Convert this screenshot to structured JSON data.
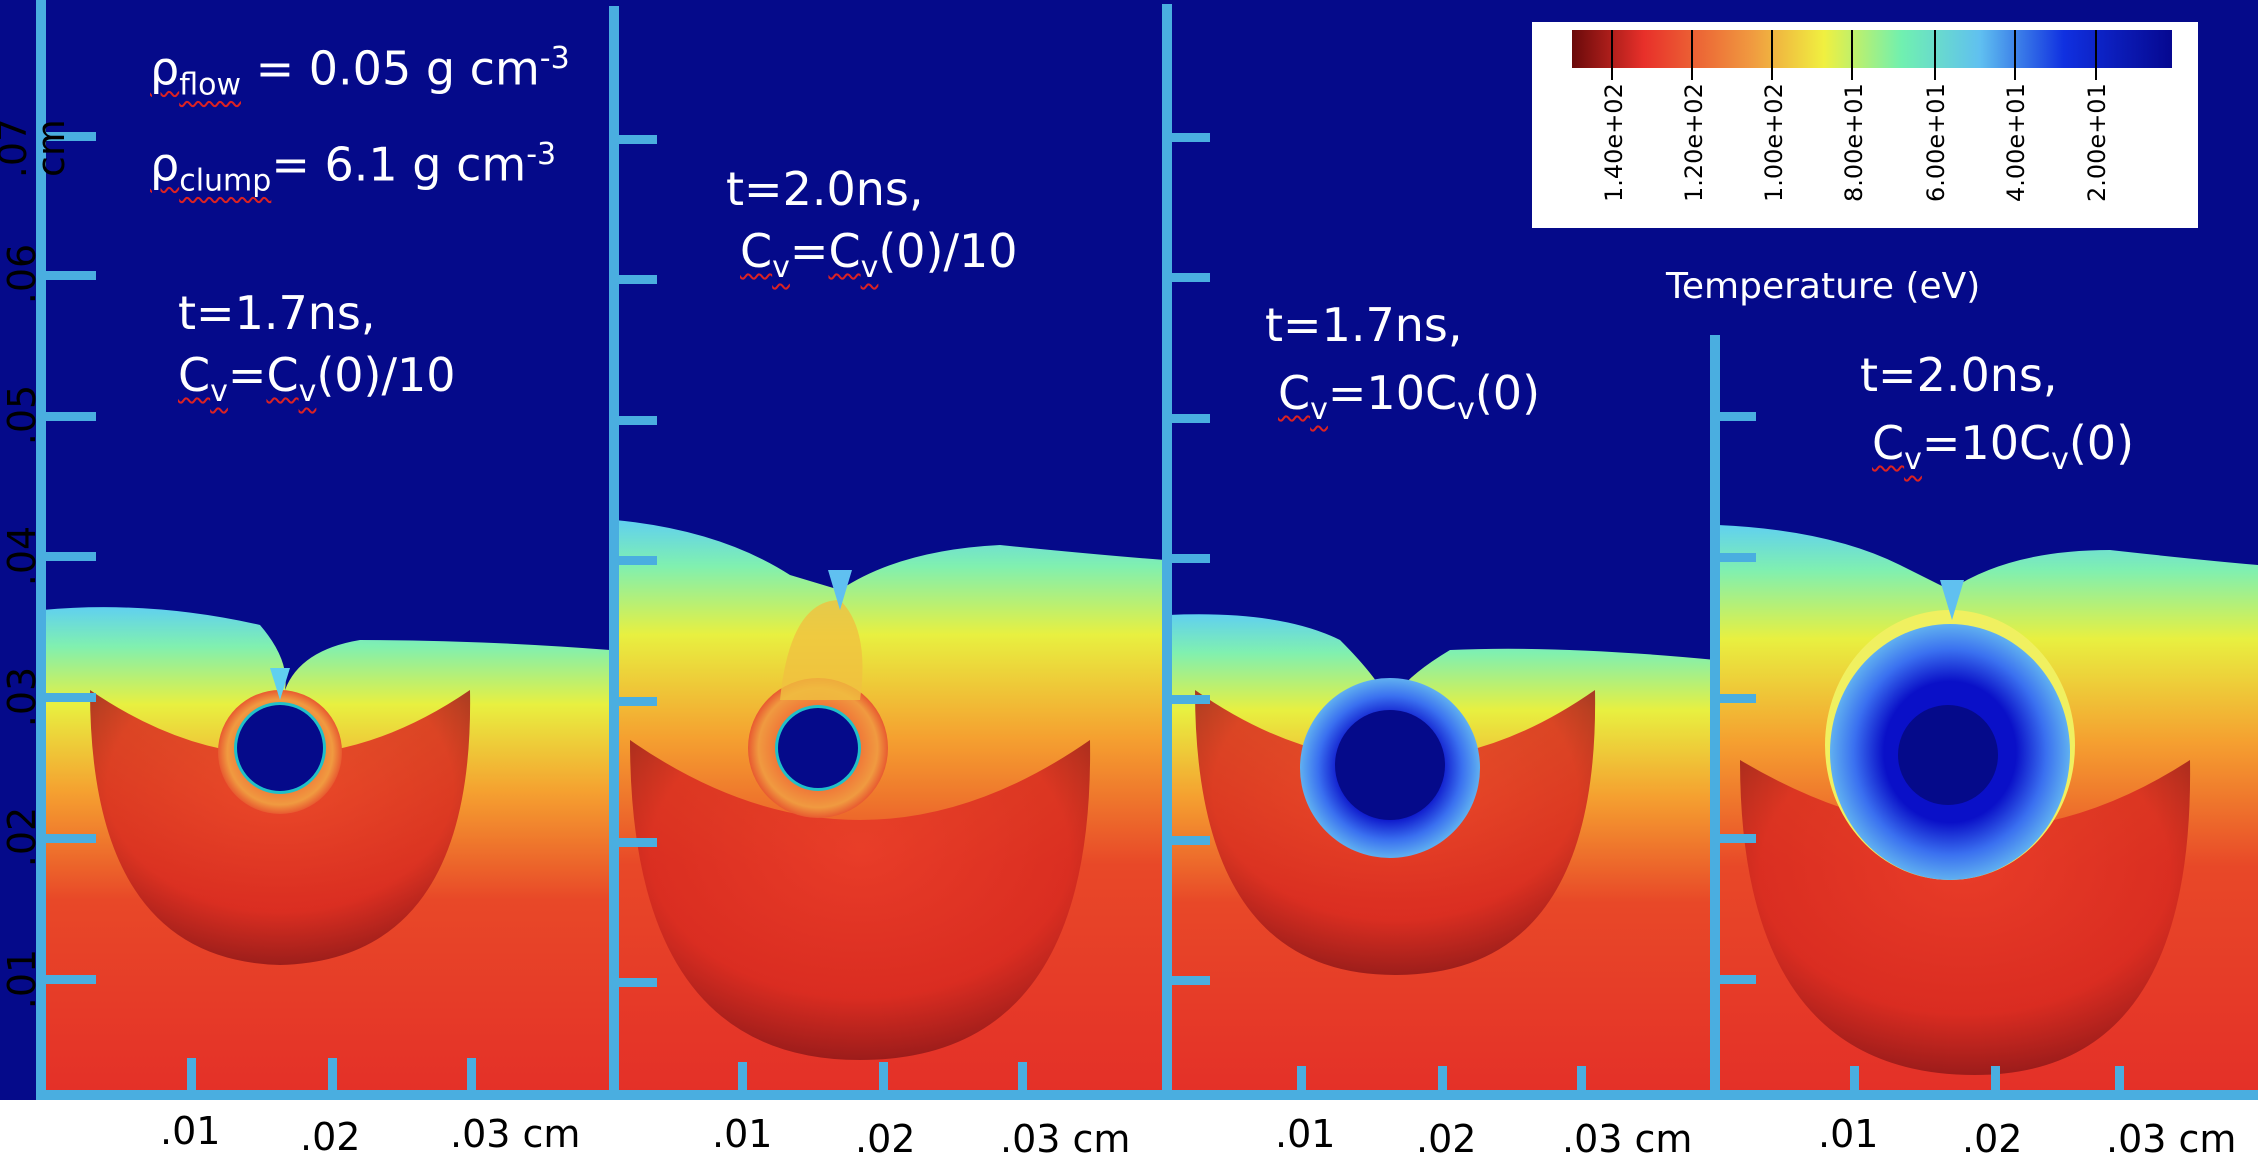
{
  "figure": {
    "density_flow": {
      "symbol": "ρ",
      "sub": "flow",
      "text": " = 0.05 g cm",
      "sup": "-3"
    },
    "density_clump": {
      "symbol": "ρ",
      "sub": "clump",
      "text": "= 6.1 g cm",
      "sup": "-3"
    },
    "y_axis_unit": ".07 cm",
    "y_ticks": [
      ".06",
      ".05",
      ".04",
      ".03",
      ".02",
      ".01"
    ],
    "colorbar": {
      "title": "Temperature (eV)",
      "tick_labels": [
        "1.40e+02",
        "1.20e+02",
        "1.00e+02",
        "8.00e+01",
        "6.00e+01",
        "4.00e+01",
        "2.00e+01"
      ],
      "colors": [
        "#7a1010",
        "#e8302a",
        "#f0a040",
        "#f0f040",
        "#70f0a0",
        "#60c0f0",
        "#1030e0",
        "#060890"
      ]
    },
    "panels": [
      {
        "time": "t=1.7ns,",
        "cv_prefix": "=",
        "cv_suffix": "(0)/10",
        "cv_mid": "C",
        "cv_sub2": "v",
        "x_ticks": [
          ".01",
          ".02",
          ".03 cm"
        ]
      },
      {
        "time": "t=2.0ns,",
        "cv_prefix": "=",
        "cv_suffix": "(0)/10",
        "cv_mid": "C",
        "cv_sub2": "v",
        "x_ticks": [
          ".01",
          ".02",
          ".03 cm"
        ]
      },
      {
        "time": "t=1.7ns,",
        "cv_prefix": "=10",
        "cv_suffix": "(0)",
        "cv_mid": "C",
        "cv_sub2": "v",
        "x_ticks": [
          ".01",
          ".02",
          ".03 cm"
        ]
      },
      {
        "time": "t=2.0ns,",
        "cv_prefix": "=10",
        "cv_suffix": "(0)",
        "cv_mid": "C",
        "cv_sub2": "v",
        "x_ticks": [
          ".01",
          ".02",
          ".03 cm"
        ]
      }
    ],
    "cv_symbol": "C",
    "cv_sub": "v"
  }
}
